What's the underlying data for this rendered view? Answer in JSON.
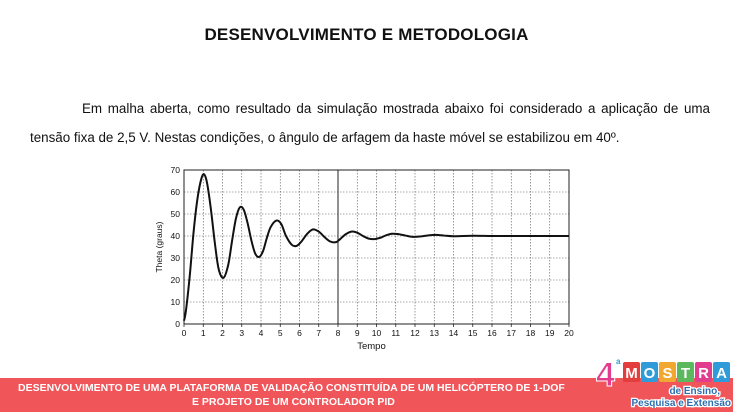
{
  "slide": {
    "title": "DESENVOLVIMENTO E METODOLOGIA",
    "paragraph": "Em malha aberta, como resultado da simulação mostrada abaixo foi considerado a aplicação de uma tensão fixa de 2,5 V. Nestas condições, o ângulo de arfagem da haste móvel se estabilizou em 40º."
  },
  "footer": {
    "line1": "DESENVOLVIMENTO DE UMA PLATAFORMA DE VALIDAÇÃO CONSTITUÍDA DE UM HELICÓPTERO DE 1-DOF",
    "line2": "E PROJETO DE UM CONTROLADOR PID",
    "background_color": "#f0555a"
  },
  "logo": {
    "number": "4",
    "superscript": "a",
    "letters": [
      "M",
      "O",
      "S",
      "T",
      "R",
      "A"
    ],
    "letter_colors": [
      "#e43d3d",
      "#2f9bd8",
      "#f0a830",
      "#5cb85c",
      "#e23c8f",
      "#2f9bd8"
    ],
    "subtitle1": "de Ensino,",
    "subtitle2": "Pesquisa e Extensão"
  },
  "chart_data": {
    "type": "line",
    "xlabel": "Tempo",
    "ylabel": "Theta (graus)",
    "xlim": [
      0,
      20
    ],
    "ylim": [
      0,
      70
    ],
    "xticks": [
      0,
      1,
      2,
      3,
      4,
      5,
      6,
      7,
      8,
      9,
      10,
      11,
      12,
      13,
      14,
      15,
      16,
      17,
      18,
      19,
      20
    ],
    "yticks": [
      0,
      10,
      20,
      30,
      40,
      50,
      60,
      70
    ],
    "grid": true,
    "marker_line_x": 8,
    "series": [
      {
        "x": [
          0,
          0.1,
          0.3,
          0.5,
          0.7,
          0.9,
          1.05,
          1.2,
          1.4,
          1.6,
          1.8,
          2.05,
          2.3,
          2.5,
          2.7,
          2.9,
          3.1,
          3.3,
          3.5,
          3.7,
          3.9,
          4.1,
          4.3,
          4.5,
          4.8,
          5.05,
          5.3,
          5.6,
          5.85,
          6.1,
          6.4,
          6.7,
          7.0,
          7.3,
          7.6,
          7.9,
          8.1,
          8.4,
          8.7,
          9.0,
          9.3,
          9.6,
          9.9,
          10.2,
          10.5,
          10.8,
          11.1,
          11.5,
          11.9,
          12.3,
          12.7,
          13.1,
          13.5,
          14,
          15,
          16,
          17,
          18,
          19,
          20
        ],
        "y": [
          1.5,
          6,
          22,
          42,
          57,
          66,
          68,
          64,
          52,
          37,
          25,
          21,
          27,
          38,
          48,
          53,
          52,
          46,
          38,
          32,
          30.5,
          33,
          39,
          44,
          47,
          45.5,
          40,
          36,
          35.5,
          37.5,
          41,
          43,
          42,
          39.5,
          37.5,
          37.2,
          38.5,
          40.8,
          42,
          41.5,
          40,
          38.8,
          38.6,
          39.2,
          40.3,
          41,
          40.9,
          40.2,
          39.6,
          39.8,
          40.3,
          40.5,
          40.2,
          39.9,
          40.1,
          40,
          40,
          40,
          40,
          40
        ]
      }
    ]
  }
}
